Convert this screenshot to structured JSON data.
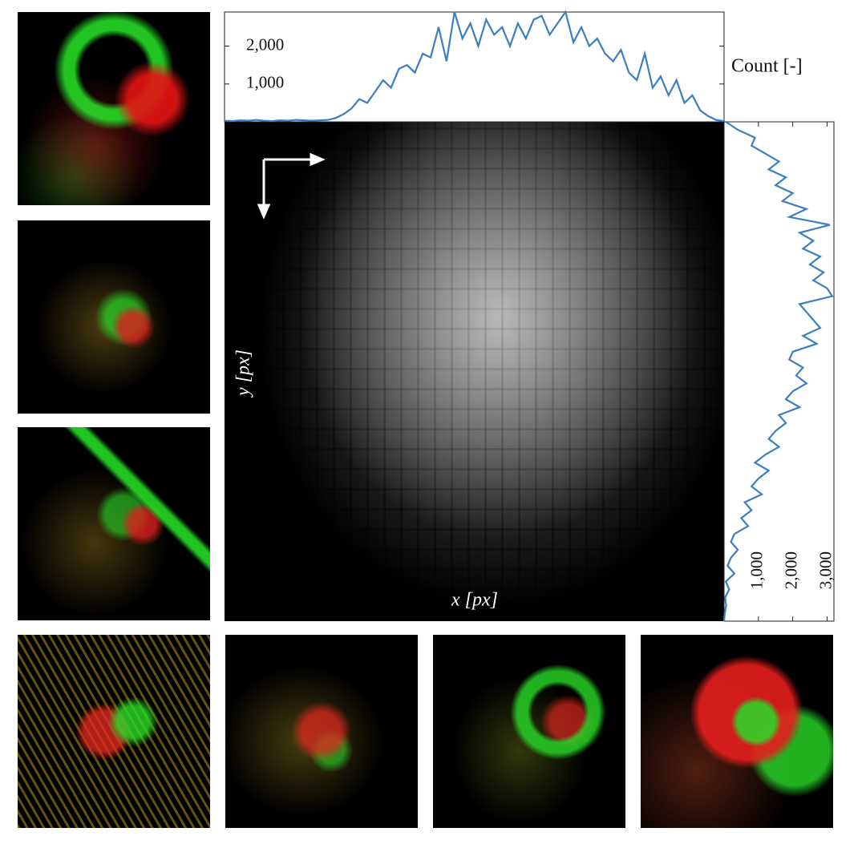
{
  "chart_data": [
    {
      "type": "line",
      "ylabel": "Count [-]",
      "color": "#3a7fc1",
      "values": [
        30,
        20,
        40,
        30,
        50,
        30,
        20,
        40,
        30,
        50,
        40,
        30,
        40,
        50,
        100,
        200,
        350,
        600,
        500,
        800,
        1100,
        900,
        1400,
        1500,
        1300,
        1800,
        1700,
        2500,
        1600,
        2900,
        2200,
        2600,
        2000,
        2700,
        2300,
        2500,
        2000,
        2600,
        2200,
        2700,
        2800,
        2300,
        2600,
        2900,
        2100,
        2500,
        2000,
        2200,
        1800,
        1600,
        1900,
        1300,
        1100,
        1800,
        900,
        1200,
        700,
        1100,
        500,
        700,
        300,
        150,
        50,
        20
      ],
      "ylim": [
        0,
        2900
      ],
      "yticks": [
        {
          "value": 1000,
          "label": "1,000"
        },
        {
          "value": 2000,
          "label": "2,000"
        }
      ]
    },
    {
      "type": "line",
      "color": "#3a7fc1",
      "values": [
        50,
        400,
        900,
        800,
        1200,
        1600,
        1300,
        1800,
        1500,
        2000,
        1700,
        2400,
        1900,
        3080,
        2200,
        2600,
        2300,
        2800,
        2500,
        2900,
        2600,
        3000,
        3150,
        2200,
        2400,
        2600,
        2800,
        2300,
        2700,
        2000,
        1900,
        2300,
        2100,
        2400,
        2000,
        1800,
        2200,
        1600,
        1800,
        1500,
        1300,
        1600,
        1200,
        900,
        1300,
        1000,
        800,
        1100,
        600,
        800,
        500,
        700,
        300,
        200,
        400,
        200,
        100,
        300,
        50,
        150,
        30,
        60,
        20,
        0
      ],
      "xlim": [
        0,
        3200
      ],
      "xticks": [
        {
          "value": 1000,
          "label": "1,000"
        },
        {
          "value": 2000,
          "label": "2,000"
        },
        {
          "value": 3000,
          "label": "3,000"
        }
      ]
    },
    {
      "type": "heatmap",
      "xlabel": "x [px]",
      "ylabel": "y [px]"
    }
  ]
}
